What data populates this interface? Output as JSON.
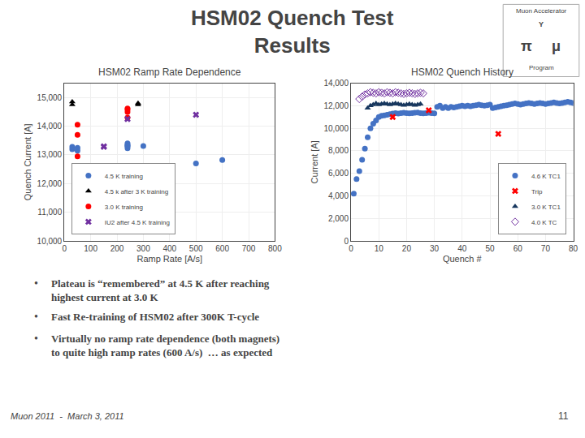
{
  "title": "HSM02 Quench Test\nResults",
  "annotations": [
    "•",
    "Plateau is “remembered” at 4.5 K after reaching\nhighest current at 3.0 K",
    "•",
    "Fast Re-training of HSM02 after 300K T-cycle",
    "•",
    "Virtually no ramp rate dependence (both magnets)\nto quite high ramp rates (600 A/s)  … as expected",
    "Muon 2011  -  March 3, 2011",
    "11",
    "Muon Accelerator",
    "Y",
    "π",
    "μ",
    "Program"
  ],
  "chart_data": [
    {
      "type": "scatter",
      "title": "HSM02 Ramp Rate Dependence",
      "xlabel": "Ramp Rate [A/s]",
      "ylabel": "Quench Current [A]",
      "xlim": [
        0,
        800
      ],
      "ylim": [
        10000,
        15500
      ],
      "xticks": [
        0,
        100,
        200,
        300,
        400,
        500,
        600,
        700,
        800
      ],
      "yticks": [
        {
          "value": 10000,
          "label": "10,000"
        },
        {
          "value": 11000,
          "label": "11,000"
        },
        {
          "value": 12000,
          "label": "12,000"
        },
        {
          "value": 13000,
          "label": "13,000"
        },
        {
          "value": 14000,
          "label": "14,000"
        },
        {
          "value": 15000,
          "label": "15,000"
        }
      ],
      "grid": true,
      "legend": "lower left",
      "series": [
        {
          "name": "4.5 K training",
          "color": "#4472c4",
          "marker": "circle",
          "x": [
            30,
            30,
            50,
            50,
            240,
            240,
            240,
            240,
            240,
            300,
            500,
            600
          ],
          "values": [
            13200,
            13280,
            13150,
            13250,
            13230,
            13300,
            13350,
            13400,
            13320,
            13310,
            12700,
            12820
          ]
        },
        {
          "name": "4.5 k after 3 K training",
          "color": "#000000",
          "marker": "triangle-up",
          "x": [
            30,
            30,
            280,
            280
          ],
          "values": [
            14750,
            14850,
            14750,
            14800
          ]
        },
        {
          "name": "3.0 K training",
          "color": "#ff0000",
          "marker": "circle",
          "x": [
            50,
            50,
            50,
            240,
            240,
            240,
            240
          ],
          "values": [
            13700,
            14050,
            12950,
            14300,
            14580,
            14620,
            14500
          ]
        },
        {
          "name": "IU2 after 4.5 K training",
          "color": "#7030a0",
          "marker": "x",
          "x": [
            150,
            150,
            240,
            500
          ],
          "values": [
            13300,
            13280,
            14250,
            14400
          ]
        }
      ]
    },
    {
      "type": "scatter",
      "title": "HSM02 Quench History",
      "xlabel": "Quench #",
      "ylabel": "Current [A]",
      "xlim": [
        0,
        80
      ],
      "ylim": [
        0,
        14000
      ],
      "xticks": [
        0,
        10,
        20,
        30,
        40,
        50,
        60,
        70,
        80
      ],
      "yticks": [
        0,
        {
          "value": 2000,
          "label": "2,000"
        },
        {
          "value": 4000,
          "label": "4,000"
        },
        {
          "value": 6000,
          "label": "6,000"
        },
        {
          "value": 8000,
          "label": "8,000"
        },
        {
          "value": 10000,
          "label": "10,000"
        },
        {
          "value": 12000,
          "label": "12,000"
        },
        {
          "value": 14000,
          "label": "14,000"
        }
      ],
      "grid": true,
      "legend": "lower right",
      "series": [
        {
          "name": "4.6 K TC1",
          "color": "#4472c4",
          "marker": "circle",
          "x": [
            1,
            2,
            3,
            4,
            5,
            6,
            7,
            8,
            9,
            10,
            11,
            12,
            13,
            14,
            15,
            16,
            17,
            18,
            19,
            20,
            21,
            22,
            23,
            24,
            25,
            26,
            27,
            28,
            29,
            30,
            31,
            32,
            33,
            34,
            35,
            36,
            37,
            38,
            39,
            40,
            41,
            42,
            43,
            44,
            45,
            46,
            47,
            48,
            49,
            50,
            51,
            52,
            53,
            54,
            55,
            56,
            57,
            58,
            59,
            60,
            61,
            62,
            63,
            64,
            65,
            66,
            67,
            68,
            69,
            70,
            71,
            72,
            73,
            74,
            75,
            76,
            77,
            78,
            79,
            80
          ],
          "values": [
            4200,
            5500,
            6200,
            7200,
            8200,
            9200,
            10000,
            10400,
            10700,
            11000,
            11100,
            11150,
            11200,
            11250,
            11300,
            11350,
            11300,
            11350,
            11380,
            11350,
            11320,
            11350,
            11380,
            11400,
            11350,
            11320,
            11350,
            11380,
            11350,
            11320,
            11900,
            12000,
            11800,
            11900,
            11800,
            11900,
            11850,
            11900,
            11950,
            12000,
            11950,
            12000,
            11950,
            12000,
            12050,
            12100,
            12050,
            12000,
            12050,
            12100,
            11800,
            11850,
            11900,
            11950,
            12000,
            12050,
            12100,
            12150,
            12200,
            12150,
            12100,
            12150,
            12200,
            12250,
            12200,
            12150,
            12200,
            12250,
            12200,
            12150,
            12200,
            12250,
            12300,
            12250,
            12200,
            12250,
            12300,
            12350,
            12300,
            12250
          ]
        },
        {
          "name": "Trip",
          "color": "#ff0000",
          "marker": "x",
          "x": [
            15,
            28,
            53
          ],
          "values": [
            11000,
            11600,
            9500
          ]
        },
        {
          "name": "3.0 K TC1",
          "color": "#17375e",
          "marker": "triangle-up",
          "x": [
            6,
            7,
            8,
            9,
            10,
            11,
            12,
            13,
            14,
            15,
            16,
            17,
            18,
            19,
            20,
            21,
            22,
            23,
            24,
            25
          ],
          "values": [
            11800,
            12000,
            12100,
            12200,
            12100,
            12150,
            12200,
            12150,
            12100,
            12150,
            12200,
            12150,
            12100,
            12050,
            12100,
            12150,
            12100,
            12050,
            12100,
            12150
          ]
        },
        {
          "name": "4.0 K TC",
          "color": "#7030a0",
          "marker": "diamond-open",
          "x": [
            3,
            4,
            5,
            6,
            7,
            8,
            9,
            10,
            11,
            12,
            13,
            14,
            15,
            16,
            17,
            18,
            19,
            20,
            21,
            22,
            23,
            24,
            25,
            26
          ],
          "values": [
            12600,
            12800,
            13000,
            13100,
            13200,
            13150,
            13100,
            13200,
            13150,
            13100,
            13200,
            13150,
            13100,
            13200,
            13150,
            13100,
            13050,
            13100,
            13150,
            13100,
            13050,
            13100,
            13150,
            13100
          ]
        }
      ]
    }
  ]
}
